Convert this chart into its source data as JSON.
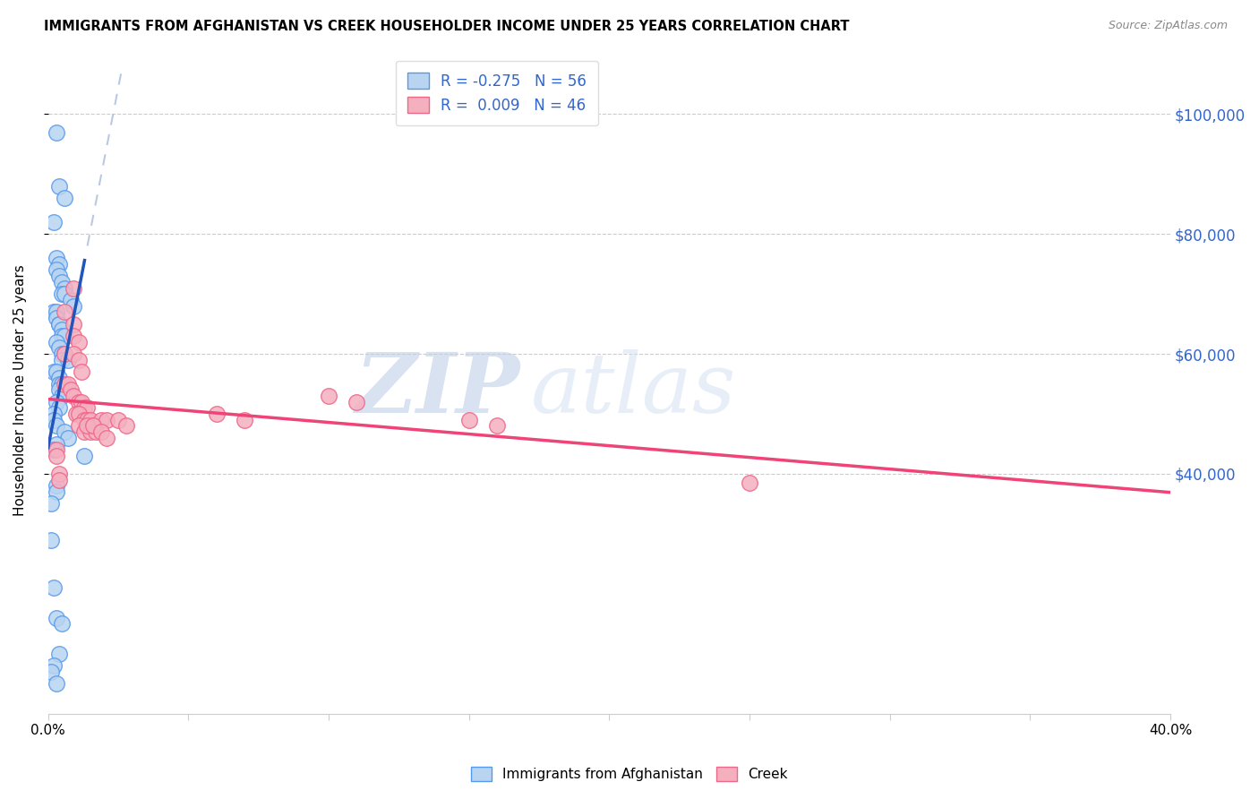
{
  "title": "IMMIGRANTS FROM AFGHANISTAN VS CREEK HOUSEHOLDER INCOME UNDER 25 YEARS CORRELATION CHART",
  "source": "Source: ZipAtlas.com",
  "ylabel": "Householder Income Under 25 years",
  "y_tick_labels": [
    "$100,000",
    "$80,000",
    "$60,000",
    "$40,000"
  ],
  "y_tick_values": [
    100000,
    80000,
    60000,
    40000
  ],
  "xlim": [
    0.0,
    0.4
  ],
  "ylim": [
    0,
    108000
  ],
  "legend1_R": "-0.275",
  "legend1_N": "56",
  "legend2_R": "0.009",
  "legend2_N": "46",
  "blue_fill": "#b8d4f0",
  "pink_fill": "#f5b0c0",
  "blue_edge": "#5599ee",
  "pink_edge": "#ee6688",
  "blue_line": "#2255bb",
  "pink_line": "#ee4477",
  "dash_color": "#aabbdd",
  "watermark_zip": "ZIP",
  "watermark_atlas": "atlas",
  "afghan_x": [
    0.003,
    0.004,
    0.006,
    0.002,
    0.003,
    0.004,
    0.003,
    0.004,
    0.005,
    0.006,
    0.005,
    0.006,
    0.008,
    0.009,
    0.002,
    0.003,
    0.003,
    0.004,
    0.004,
    0.005,
    0.005,
    0.006,
    0.003,
    0.004,
    0.005,
    0.006,
    0.005,
    0.007,
    0.002,
    0.003,
    0.004,
    0.004,
    0.005,
    0.004,
    0.005,
    0.003,
    0.004,
    0.002,
    0.002,
    0.003,
    0.006,
    0.007,
    0.003,
    0.002,
    0.013,
    0.003,
    0.003,
    0.001,
    0.001,
    0.002,
    0.003,
    0.005,
    0.004,
    0.002,
    0.001,
    0.003
  ],
  "afghan_y": [
    97000,
    88000,
    86000,
    82000,
    76000,
    75000,
    74000,
    73000,
    72000,
    71000,
    70000,
    70000,
    69000,
    68000,
    67000,
    67000,
    66000,
    65000,
    65000,
    64000,
    63000,
    63000,
    62000,
    61000,
    60000,
    60000,
    59000,
    59000,
    57000,
    57000,
    56000,
    55000,
    55000,
    54000,
    53000,
    52000,
    51000,
    50000,
    49000,
    48000,
    47000,
    46000,
    45000,
    44000,
    43000,
    38000,
    37000,
    35000,
    29000,
    21000,
    16000,
    15000,
    10000,
    8000,
    7000,
    5000
  ],
  "creek_x": [
    0.009,
    0.006,
    0.009,
    0.009,
    0.011,
    0.006,
    0.009,
    0.011,
    0.012,
    0.006,
    0.007,
    0.008,
    0.009,
    0.011,
    0.012,
    0.013,
    0.014,
    0.01,
    0.011,
    0.013,
    0.014,
    0.015,
    0.016,
    0.011,
    0.013,
    0.015,
    0.017,
    0.019,
    0.021,
    0.014,
    0.016,
    0.019,
    0.021,
    0.025,
    0.028,
    0.06,
    0.07,
    0.1,
    0.11,
    0.15,
    0.16,
    0.003,
    0.003,
    0.004,
    0.004
  ],
  "creek_y": [
    71000,
    67000,
    65000,
    63000,
    62000,
    60000,
    60000,
    59000,
    57000,
    55000,
    55000,
    54000,
    53000,
    52000,
    52000,
    51000,
    51000,
    50000,
    50000,
    49000,
    49000,
    49000,
    48000,
    48000,
    47000,
    47000,
    47000,
    49000,
    49000,
    48000,
    48000,
    47000,
    46000,
    49000,
    48000,
    50000,
    49000,
    53000,
    52000,
    49000,
    48000,
    44000,
    43000,
    40000,
    39000
  ],
  "creek_outlier_x": [
    0.25
  ],
  "creek_outlier_y": [
    38500
  ]
}
